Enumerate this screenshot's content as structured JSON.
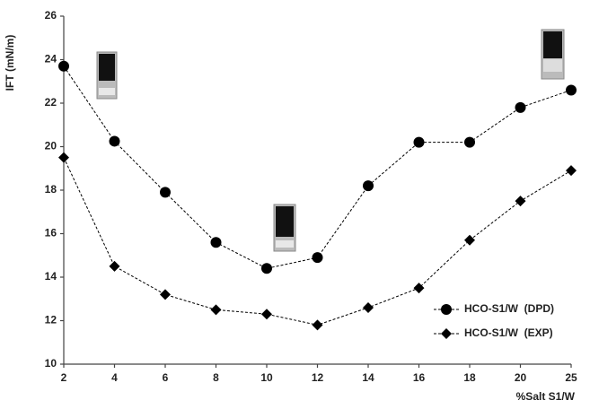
{
  "chart_data": {
    "type": "line",
    "x_label": "%Salt S1/W",
    "y_label": "IFT  (mN/m)",
    "categories": [
      "2",
      "4",
      "6",
      "8",
      "10",
      "12",
      "14",
      "16",
      "18",
      "20",
      "25"
    ],
    "series": [
      {
        "name": "HCO-S1/W  (DPD)",
        "color": "#000000",
        "marker": "circle",
        "values": [
          23.7,
          20.25,
          17.9,
          15.6,
          14.4,
          14.9,
          18.2,
          20.2,
          20.2,
          21.8,
          22.6
        ]
      },
      {
        "name": "HCO-S1/W  (EXP)",
        "color": "#000000",
        "marker": "diamond",
        "values": [
          19.5,
          14.5,
          13.2,
          12.5,
          12.3,
          11.8,
          12.6,
          13.5,
          15.7,
          17.5,
          18.9
        ]
      }
    ],
    "ylim": [
      10,
      26
    ],
    "yticks": [
      10,
      12,
      14,
      16,
      18,
      20,
      22,
      24,
      26
    ],
    "grid": false,
    "legend": "lower right"
  }
}
